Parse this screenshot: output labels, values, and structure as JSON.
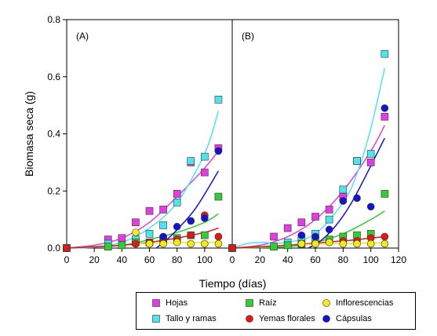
{
  "chart_data": {
    "type": "scatter",
    "ylabel": "Biomasa seca (g)",
    "xlabel": "Tiempo (días)",
    "ylim": [
      0,
      0.8
    ],
    "y_ticks": [
      "0.0",
      "0.2",
      "0.4",
      "0.6",
      "0.8"
    ],
    "xlim": [
      0,
      120
    ],
    "panel_a_x_ticks": [
      "0",
      "20",
      "40",
      "60",
      "80",
      "100"
    ],
    "panel_b_x_ticks": [
      "0",
      "20",
      "40",
      "60",
      "80",
      "100",
      "120"
    ],
    "legend_position": "bottom",
    "series": [
      {
        "name": "Hojas",
        "marker": "square",
        "color": "#e23de3"
      },
      {
        "name": "Tallo y ramas",
        "marker": "square",
        "color": "#4fe3f0"
      },
      {
        "name": "Raíz",
        "marker": "square",
        "color": "#33cc33"
      },
      {
        "name": "Yemas florales",
        "marker": "circle",
        "color": "#e01818"
      },
      {
        "name": "Inflorescencias",
        "marker": "circle",
        "color": "#f2ea1a"
      },
      {
        "name": "Cápsulas",
        "marker": "circle",
        "color": "#1414cc"
      }
    ],
    "panels": [
      {
        "label": "(A)",
        "points": {
          "Hojas": [
            [
              0,
              0.0
            ],
            [
              30,
              0.03
            ],
            [
              40,
              0.035
            ],
            [
              50,
              0.09
            ],
            [
              60,
              0.13
            ],
            [
              70,
              0.135
            ],
            [
              80,
              0.19
            ],
            [
              90,
              0.3
            ],
            [
              100,
              0.265
            ],
            [
              110,
              0.35
            ]
          ],
          "Tallo y ramas": [
            [
              0,
              0.0
            ],
            [
              30,
              0.015
            ],
            [
              50,
              0.03
            ],
            [
              60,
              0.05
            ],
            [
              70,
              0.08
            ],
            [
              80,
              0.16
            ],
            [
              90,
              0.305
            ],
            [
              100,
              0.32
            ],
            [
              110,
              0.52
            ]
          ],
          "Raíz": [
            [
              0,
              0.0
            ],
            [
              30,
              0.005
            ],
            [
              40,
              0.01
            ],
            [
              50,
              0.02
            ],
            [
              60,
              0.02
            ],
            [
              70,
              0.03
            ],
            [
              80,
              0.035
            ],
            [
              90,
              0.045
            ],
            [
              100,
              0.045
            ],
            [
              110,
              0.18
            ]
          ],
          "Yemas florales": [
            [
              0,
              0.0
            ],
            [
              50,
              0.015
            ],
            [
              60,
              0.02
            ],
            [
              70,
              0.025
            ],
            [
              80,
              0.03
            ],
            [
              90,
              0.045
            ],
            [
              100,
              0.115
            ],
            [
              110,
              0.04
            ]
          ],
          "Inflorescencias": [
            [
              50,
              0.055
            ],
            [
              60,
              0.015
            ],
            [
              70,
              0.015
            ],
            [
              80,
              0.02
            ],
            [
              90,
              0.015
            ],
            [
              100,
              0.015
            ],
            [
              110,
              0.015
            ]
          ],
          "Cápsulas": [
            [
              70,
              0.04
            ],
            [
              80,
              0.075
            ],
            [
              90,
              0.095
            ],
            [
              100,
              0.105
            ],
            [
              110,
              0.34
            ]
          ]
        },
        "fits": {
          "Hojas": [
            [
              0,
              0.0
            ],
            [
              20,
              0.01
            ],
            [
              40,
              0.035
            ],
            [
              60,
              0.09
            ],
            [
              80,
              0.18
            ],
            [
              100,
              0.28
            ],
            [
              110,
              0.34
            ]
          ],
          "Tallo y ramas": [
            [
              0,
              0.0
            ],
            [
              20,
              0.003
            ],
            [
              40,
              0.02
            ],
            [
              60,
              0.07
            ],
            [
              80,
              0.16
            ],
            [
              100,
              0.33
            ],
            [
              110,
              0.48
            ]
          ],
          "Raíz": [
            [
              0,
              0.0
            ],
            [
              40,
              0.01
            ],
            [
              60,
              0.03
            ],
            [
              80,
              0.055
            ],
            [
              100,
              0.09
            ],
            [
              110,
              0.12
            ]
          ],
          "Yemas florales": [
            [
              0,
              0.0
            ],
            [
              40,
              0.01
            ],
            [
              60,
              0.02
            ],
            [
              80,
              0.035
            ],
            [
              100,
              0.055
            ],
            [
              110,
              0.07
            ]
          ],
          "Inflorescencias": [
            [
              50,
              0.015
            ],
            [
              70,
              0.018
            ],
            [
              90,
              0.02
            ],
            [
              110,
              0.02
            ]
          ],
          "Cápsulas": [
            [
              65,
              0.0
            ],
            [
              75,
              0.04
            ],
            [
              85,
              0.09
            ],
            [
              95,
              0.15
            ],
            [
              110,
              0.27
            ]
          ]
        }
      },
      {
        "label": "(B)",
        "points": {
          "Hojas": [
            [
              0,
              0.0
            ],
            [
              30,
              0.04
            ],
            [
              40,
              0.07
            ],
            [
              50,
              0.09
            ],
            [
              60,
              0.11
            ],
            [
              70,
              0.135
            ],
            [
              80,
              0.18
            ],
            [
              90,
              0.305
            ],
            [
              100,
              0.3
            ],
            [
              110,
              0.46
            ]
          ],
          "Tallo y ramas": [
            [
              0,
              0.0
            ],
            [
              40,
              0.02
            ],
            [
              50,
              0.035
            ],
            [
              60,
              0.05
            ],
            [
              70,
              0.1
            ],
            [
              80,
              0.205
            ],
            [
              90,
              0.305
            ],
            [
              100,
              0.33
            ],
            [
              110,
              0.68
            ]
          ],
          "Raíz": [
            [
              0,
              0.0
            ],
            [
              30,
              0.005
            ],
            [
              40,
              0.01
            ],
            [
              50,
              0.015
            ],
            [
              60,
              0.025
            ],
            [
              70,
              0.03
            ],
            [
              80,
              0.04
            ],
            [
              90,
              0.045
            ],
            [
              100,
              0.05
            ],
            [
              110,
              0.19
            ]
          ],
          "Yemas florales": [
            [
              0,
              0.0
            ],
            [
              50,
              0.015
            ],
            [
              60,
              0.015
            ],
            [
              70,
              0.02
            ],
            [
              80,
              0.025
            ],
            [
              90,
              0.025
            ],
            [
              100,
              0.035
            ],
            [
              110,
              0.04
            ]
          ],
          "Inflorescencias": [
            [
              50,
              0.015
            ],
            [
              60,
              0.015
            ],
            [
              70,
              0.02
            ],
            [
              80,
              0.015
            ],
            [
              90,
              0.015
            ],
            [
              100,
              0.015
            ],
            [
              110,
              0.015
            ]
          ],
          "Cápsulas": [
            [
              50,
              0.045
            ],
            [
              60,
              0.04
            ],
            [
              70,
              0.065
            ],
            [
              80,
              0.165
            ],
            [
              90,
              0.175
            ],
            [
              100,
              0.145
            ],
            [
              110,
              0.49
            ]
          ]
        },
        "fits": {
          "Hojas": [
            [
              0,
              0.0
            ],
            [
              20,
              0.01
            ],
            [
              40,
              0.04
            ],
            [
              60,
              0.1
            ],
            [
              80,
              0.2
            ],
            [
              100,
              0.34
            ],
            [
              110,
              0.43
            ]
          ],
          "Tallo y ramas": [
            [
              0,
              0.0
            ],
            [
              10,
              0.015
            ],
            [
              20,
              0.02
            ],
            [
              30,
              0.018
            ],
            [
              40,
              0.02
            ],
            [
              60,
              0.05
            ],
            [
              80,
              0.16
            ],
            [
              90,
              0.26
            ],
            [
              100,
              0.42
            ],
            [
              110,
              0.63
            ]
          ],
          "Raíz": [
            [
              0,
              0.0
            ],
            [
              40,
              0.005
            ],
            [
              60,
              0.02
            ],
            [
              80,
              0.05
            ],
            [
              100,
              0.1
            ],
            [
              110,
              0.13
            ]
          ],
          "Yemas florales": [
            [
              0,
              0.0
            ],
            [
              40,
              0.01
            ],
            [
              60,
              0.018
            ],
            [
              80,
              0.025
            ],
            [
              100,
              0.035
            ],
            [
              110,
              0.04
            ]
          ],
          "Inflorescencias": [
            [
              50,
              0.012
            ],
            [
              70,
              0.015
            ],
            [
              90,
              0.017
            ],
            [
              110,
              0.018
            ]
          ],
          "Cápsulas": [
            [
              55,
              0.0
            ],
            [
              65,
              0.03
            ],
            [
              75,
              0.08
            ],
            [
              85,
              0.15
            ],
            [
              95,
              0.24
            ],
            [
              110,
              0.385
            ]
          ]
        }
      }
    ]
  }
}
